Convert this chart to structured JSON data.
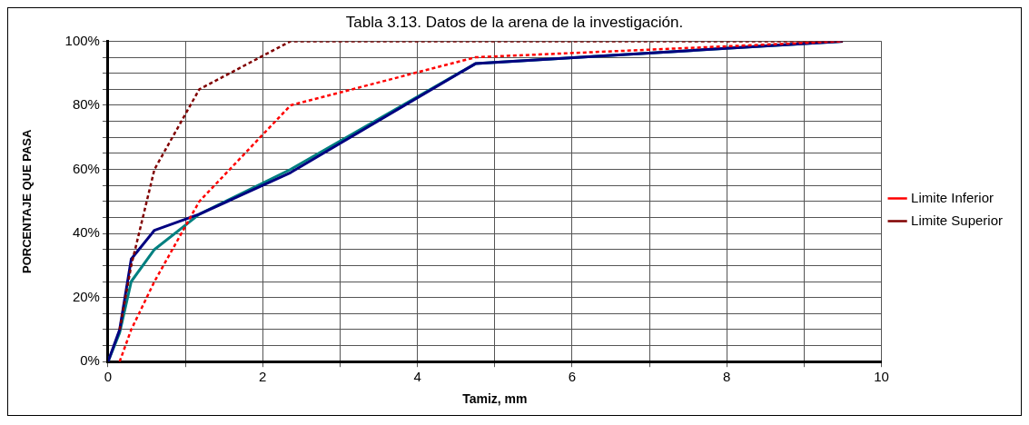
{
  "chart_data": {
    "type": "line",
    "title": "Tabla 3.13. Datos de la arena de la investigación.",
    "xlabel": "Tamiz, mm",
    "ylabel": "PORCENTAJE QUE PASA",
    "series": [
      {
        "color": "#000080",
        "line_style": "solid",
        "x": [
          0,
          0.15,
          0.3,
          0.6,
          1.18,
          2.36,
          4.75,
          9.5
        ],
        "values": [
          0,
          10,
          32,
          41,
          46,
          59,
          93,
          100
        ]
      },
      {
        "color": "#008080",
        "line_style": "solid",
        "x": [
          0,
          0.15,
          0.3,
          0.6,
          1.18,
          2.36,
          4.75,
          9.5
        ],
        "values": [
          0,
          9,
          25,
          35,
          46,
          60,
          93,
          100
        ]
      },
      {
        "name": "Limite Inferior",
        "color": "#ff0000",
        "line_style": "dashed",
        "x": [
          0.15,
          0.3,
          0.6,
          1.18,
          2.36,
          4.75,
          9.5
        ],
        "values": [
          0,
          10,
          25,
          50,
          80,
          95,
          100
        ]
      },
      {
        "name": "Limite Superior",
        "color": "#800000",
        "line_style": "dashed",
        "x": [
          0.15,
          0.3,
          0.6,
          1.18,
          2.36,
          4.75,
          9.5
        ],
        "values": [
          10,
          30,
          60,
          85,
          100,
          100,
          100
        ]
      }
    ],
    "xlim": [
      0,
      10
    ],
    "xticks": [
      0,
      {
        "value": 1,
        "label": null
      },
      2,
      {
        "value": 3,
        "label": null
      },
      4,
      {
        "value": 5,
        "label": null
      },
      6,
      {
        "value": 7,
        "label": null
      },
      8,
      {
        "value": 9,
        "label": null
      },
      10
    ],
    "ylim": [
      0,
      100
    ],
    "yticks": [
      {
        "value": 0,
        "label": "0%"
      },
      {
        "value": 5,
        "label": null
      },
      {
        "value": 10,
        "label": null
      },
      {
        "value": 15,
        "label": null
      },
      {
        "value": 20,
        "label": "20%"
      },
      {
        "value": 25,
        "label": null
      },
      {
        "value": 30,
        "label": null
      },
      {
        "value": 35,
        "label": null
      },
      {
        "value": 40,
        "label": "40%"
      },
      {
        "value": 45,
        "label": null
      },
      {
        "value": 50,
        "label": null
      },
      {
        "value": 55,
        "label": null
      },
      {
        "value": 60,
        "label": "60%"
      },
      {
        "value": 65,
        "label": null
      },
      {
        "value": 70,
        "label": null
      },
      {
        "value": 75,
        "label": null
      },
      {
        "value": 80,
        "label": "80%"
      },
      {
        "value": 85,
        "label": null
      },
      {
        "value": 90,
        "label": null
      },
      {
        "value": 95,
        "label": null
      },
      {
        "value": 100,
        "label": "100%"
      }
    ],
    "grid": true,
    "legend": "right",
    "marker": "none"
  }
}
